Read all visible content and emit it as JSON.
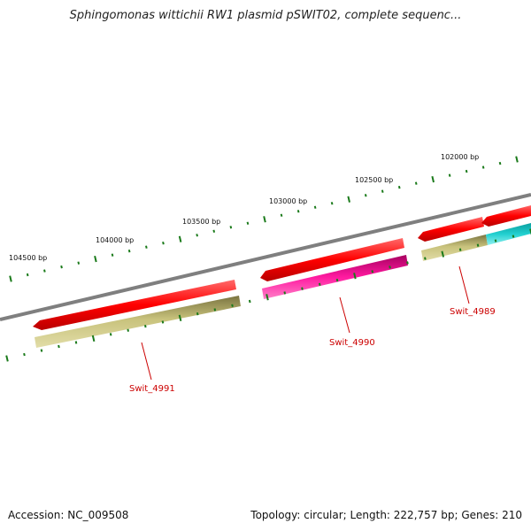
{
  "title": "Sphingomonas wittichii RW1 plasmid pSWIT02, complete sequenc...",
  "footer": {
    "accession": "Accession: NC_009508",
    "summary": "Topology: circular; Length: 222,757 bp; Genes: 210"
  },
  "ruler_labels": [
    {
      "text": "102000 bp",
      "bp": 102000
    },
    {
      "text": "102500 bp",
      "bp": 102500
    },
    {
      "text": "103000 bp",
      "bp": 103000
    },
    {
      "text": "103500 bp",
      "bp": 103500
    },
    {
      "text": "104000 bp",
      "bp": 104000
    },
    {
      "text": "104500 bp",
      "bp": 104500
    }
  ],
  "genes": [
    {
      "name": "Swit_4989",
      "label": "Swit_4989",
      "outer_color": "#ff0000",
      "inner_color": "#c8c27c"
    },
    {
      "name": "Swit_4990",
      "label": "Swit_4990",
      "outer_color": "#ff0000",
      "inner_color": "#ff1aa0"
    },
    {
      "name": "Swit_4991",
      "label": "Swit_4991",
      "outer_color": "#ff0000",
      "inner_color": "#c8c27c"
    }
  ],
  "colors": {
    "backbone": "#7f7f7f",
    "tick": "#1a7a1a",
    "gene_label": "#cc0000",
    "extra_inner": "#22d0d0"
  }
}
